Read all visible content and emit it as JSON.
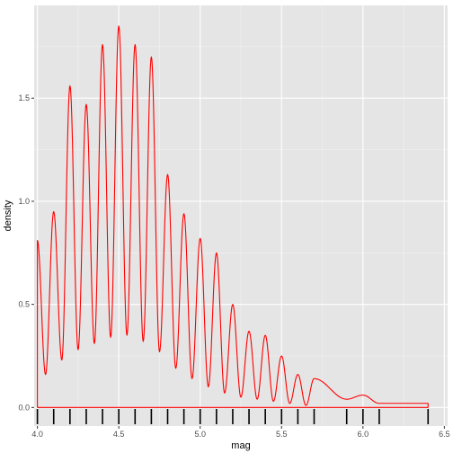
{
  "chart_data": {
    "type": "line",
    "title": "",
    "xlabel": "mag",
    "ylabel": "density",
    "xlim": [
      3.98,
      6.52
    ],
    "ylim": [
      -0.09,
      1.95
    ],
    "x_ticks": [
      4.0,
      4.5,
      5.0,
      5.5,
      6.0,
      6.5
    ],
    "x_tick_labels": [
      "4.0",
      "4.5",
      "5.0",
      "5.5",
      "6.0",
      "6.5"
    ],
    "y_ticks": [
      0.0,
      0.5,
      1.0,
      1.5
    ],
    "y_tick_labels": [
      "0.0",
      "0.5",
      "1.0",
      "1.5"
    ],
    "grid": true,
    "line_color": "#ff0000",
    "panel_background": "#e5e5e5",
    "peaks": [
      {
        "x": 4.0,
        "y": 0.81
      },
      {
        "x": 4.1,
        "y": 0.95
      },
      {
        "x": 4.2,
        "y": 1.56
      },
      {
        "x": 4.3,
        "y": 1.47
      },
      {
        "x": 4.4,
        "y": 1.76
      },
      {
        "x": 4.5,
        "y": 1.85
      },
      {
        "x": 4.6,
        "y": 1.76
      },
      {
        "x": 4.7,
        "y": 1.7
      },
      {
        "x": 4.8,
        "y": 1.13
      },
      {
        "x": 4.9,
        "y": 0.94
      },
      {
        "x": 5.0,
        "y": 0.82
      },
      {
        "x": 5.1,
        "y": 0.75
      },
      {
        "x": 5.2,
        "y": 0.5
      },
      {
        "x": 5.3,
        "y": 0.37
      },
      {
        "x": 5.4,
        "y": 0.35
      },
      {
        "x": 5.5,
        "y": 0.25
      },
      {
        "x": 5.6,
        "y": 0.16
      },
      {
        "x": 5.7,
        "y": 0.14
      },
      {
        "x": 5.9,
        "y": 0.04
      },
      {
        "x": 6.0,
        "y": 0.06
      },
      {
        "x": 6.1,
        "y": 0.02
      },
      {
        "x": 6.4,
        "y": 0.02
      }
    ],
    "valleys": [
      {
        "x": 4.05,
        "y": 0.16
      },
      {
        "x": 4.15,
        "y": 0.23
      },
      {
        "x": 4.25,
        "y": 0.28
      },
      {
        "x": 4.35,
        "y": 0.31
      },
      {
        "x": 4.45,
        "y": 0.34
      },
      {
        "x": 4.55,
        "y": 0.35
      },
      {
        "x": 4.65,
        "y": 0.32
      },
      {
        "x": 4.75,
        "y": 0.27
      },
      {
        "x": 4.85,
        "y": 0.19
      },
      {
        "x": 4.95,
        "y": 0.14
      },
      {
        "x": 5.05,
        "y": 0.1
      },
      {
        "x": 5.15,
        "y": 0.07
      },
      {
        "x": 5.25,
        "y": 0.05
      },
      {
        "x": 5.35,
        "y": 0.04
      },
      {
        "x": 5.45,
        "y": 0.03
      },
      {
        "x": 5.55,
        "y": 0.02
      },
      {
        "x": 5.65,
        "y": 0.01
      }
    ],
    "rug_x": [
      4.0,
      4.1,
      4.2,
      4.3,
      4.4,
      4.5,
      4.6,
      4.7,
      4.8,
      4.9,
      5.0,
      5.1,
      5.2,
      5.3,
      5.4,
      5.5,
      5.6,
      5.7,
      5.9,
      6.0,
      6.1,
      6.4
    ]
  }
}
